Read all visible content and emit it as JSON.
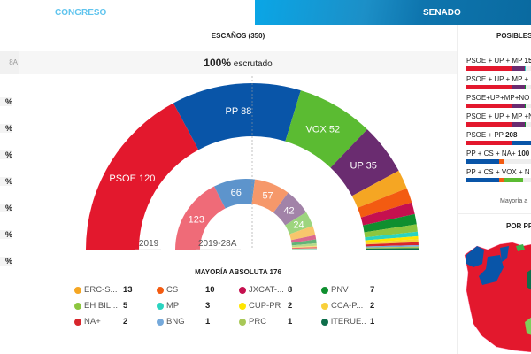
{
  "tabs": {
    "congreso": "CONGRESO",
    "senado": "SENADO"
  },
  "left": {
    "header": "8A",
    "percents": [
      "%",
      "%",
      "%",
      "%",
      "%",
      "%",
      "%"
    ]
  },
  "main": {
    "title": "ESCAÑOS (350)",
    "scrutiny_value": "100%",
    "scrutiny_label": "escrutado",
    "label_2019": "2019",
    "label_28a": "2019-28A",
    "majority": "MAYORÍA ABSOLUTA 176",
    "seats_2019": [
      {
        "party": "PSOE",
        "seats": 120,
        "color": "#e3182d",
        "label": "PSOE 120"
      },
      {
        "party": "PP",
        "seats": 88,
        "color": "#0955a8",
        "label": "PP 88"
      },
      {
        "party": "VOX",
        "seats": 52,
        "color": "#5bbb32",
        "label": "VOX 52"
      },
      {
        "party": "UP",
        "seats": 35,
        "color": "#6a2c70",
        "label": "UP 35"
      },
      {
        "party": "ERC-S",
        "seats": 13,
        "color": "#f5a623"
      },
      {
        "party": "CS",
        "seats": 10,
        "color": "#f35b11"
      },
      {
        "party": "JXCAT",
        "seats": 8,
        "color": "#c5104f"
      },
      {
        "party": "PNV",
        "seats": 7,
        "color": "#0f8f2f"
      },
      {
        "party": "EH BIL",
        "seats": 5,
        "color": "#8cc63f"
      },
      {
        "party": "MP",
        "seats": 3,
        "color": "#2ad4c0"
      },
      {
        "party": "CUP-PR",
        "seats": 2,
        "color": "#ffe500"
      },
      {
        "party": "CCA-P",
        "seats": 2,
        "color": "#f9d03a"
      },
      {
        "party": "NA+",
        "seats": 2,
        "color": "#d7262c"
      },
      {
        "party": "BNG",
        "seats": 1,
        "color": "#75a9db"
      },
      {
        "party": "PRC",
        "seats": 1,
        "color": "#a8c857"
      },
      {
        "party": "TERUEL",
        "seats": 1,
        "color": "#0e6e4b"
      }
    ],
    "seats_28a": [
      {
        "seats": 123,
        "color": "#ef6b78",
        "label": "123"
      },
      {
        "seats": 66,
        "color": "#5d94cc",
        "label": "66"
      },
      {
        "seats": 57,
        "color": "#f6986a",
        "label": "57"
      },
      {
        "seats": 42,
        "color": "#a283a8",
        "label": "42"
      },
      {
        "seats": 24,
        "color": "#9dd57e",
        "label": "24"
      },
      {
        "seats": 15,
        "color": "#f8c66c"
      },
      {
        "seats": 7,
        "color": "#d9688f"
      },
      {
        "seats": 6,
        "color": "#62b378"
      },
      {
        "seats": 4,
        "color": "#b6d98a"
      },
      {
        "seats": 2,
        "color": "#f9dd7c"
      },
      {
        "seats": 2,
        "color": "#e76a6f"
      },
      {
        "seats": 1,
        "color": "#c6dc96"
      },
      {
        "seats": 1,
        "color": "#9ad8d0"
      }
    ],
    "legend": [
      {
        "name": "ERC-S...",
        "value": "13",
        "color": "#f5a623"
      },
      {
        "name": "CS",
        "value": "10",
        "color": "#f35b11"
      },
      {
        "name": "JXCAT-...",
        "value": "8",
        "color": "#c5104f"
      },
      {
        "name": "PNV",
        "value": "7",
        "color": "#0f8f2f"
      },
      {
        "name": "EH BIL...",
        "value": "5",
        "color": "#8cc63f"
      },
      {
        "name": "MP",
        "value": "3",
        "color": "#2ad4c0"
      },
      {
        "name": "CUP-PR",
        "value": "2",
        "color": "#ffe500"
      },
      {
        "name": "CCA-P...",
        "value": "2",
        "color": "#f9d03a"
      },
      {
        "name": "NA+",
        "value": "2",
        "color": "#d7262c"
      },
      {
        "name": "BNG",
        "value": "1",
        "color": "#75a9db"
      },
      {
        "name": "PRC",
        "value": "1",
        "color": "#a8c857"
      },
      {
        "name": "iTERUE...",
        "value": "1",
        "color": "#0e6e4b"
      }
    ]
  },
  "right": {
    "title": "POSIBLES",
    "coalitions": [
      {
        "label": "PSOE + UP + MP ",
        "value": "15",
        "parts": [
          [
            120,
            "#e3182d"
          ],
          [
            35,
            "#6a2c70"
          ],
          [
            3,
            "#2ad4c0"
          ]
        ]
      },
      {
        "label": "PSOE + UP + MP + ",
        "value": "",
        "parts": [
          [
            120,
            "#e3182d"
          ],
          [
            35,
            "#6a2c70"
          ],
          [
            3,
            "#0f8f2f"
          ]
        ]
      },
      {
        "label": "PSOE+UP+MP+NO",
        "value": "",
        "parts": [
          [
            120,
            "#e3182d"
          ],
          [
            35,
            "#6a2c70"
          ],
          [
            3,
            "#0f8f2f"
          ]
        ]
      },
      {
        "label": "PSOE + UP + MP +N",
        "value": "",
        "parts": [
          [
            120,
            "#e3182d"
          ],
          [
            35,
            "#6a2c70"
          ],
          [
            3,
            "#0f8f2f"
          ]
        ]
      },
      {
        "label": "PSOE + PP ",
        "value": "208",
        "parts": [
          [
            120,
            "#e3182d"
          ],
          [
            88,
            "#0955a8"
          ]
        ]
      },
      {
        "label": "PP + CS + NA+ ",
        "value": "100",
        "parts": [
          [
            88,
            "#0955a8"
          ],
          [
            10,
            "#f35b11"
          ],
          [
            2,
            "#d7262c"
          ]
        ]
      },
      {
        "label": "PP + CS + VOX + N",
        "value": "",
        "parts": [
          [
            88,
            "#0955a8"
          ],
          [
            10,
            "#f35b11"
          ],
          [
            52,
            "#5bbb32"
          ]
        ]
      }
    ],
    "majority_note": "Mayoría a",
    "province_title": "POR PR"
  }
}
